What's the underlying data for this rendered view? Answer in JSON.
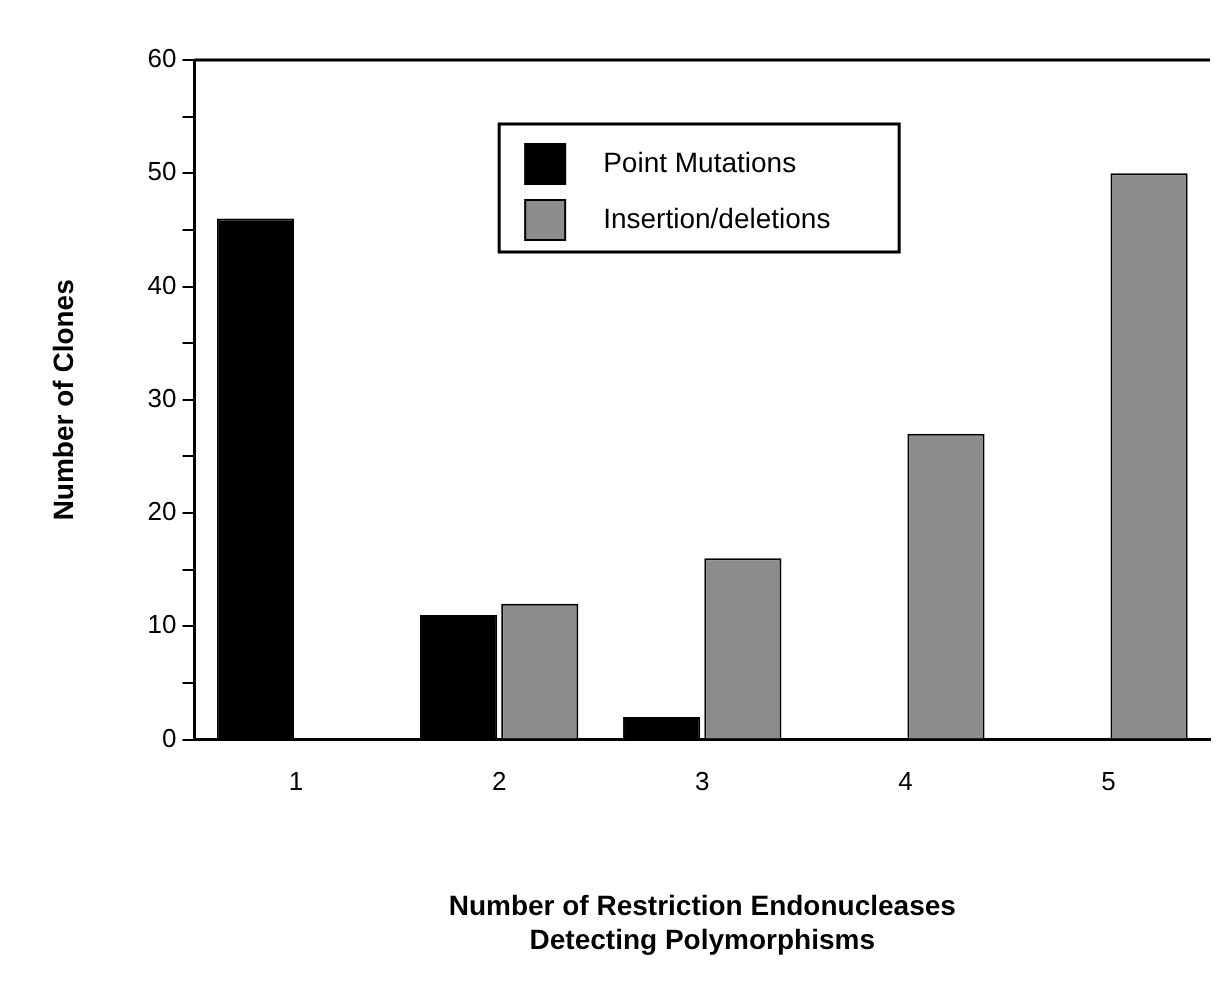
{
  "chart_data": {
    "type": "bar",
    "xlabel": "Number of Restriction Endonucleases\nDetecting Polymorphisms",
    "ylabel": "Number of Clones",
    "categories": [
      "1",
      "2",
      "3",
      "4",
      "5"
    ],
    "series": [
      {
        "name": "Point Mutations",
        "color": "#000000",
        "values": [
          46,
          11,
          2,
          0,
          0
        ]
      },
      {
        "name": "Insertion/deletions",
        "color": "#8c8c8c",
        "values": [
          0,
          12,
          16,
          27,
          50
        ]
      }
    ],
    "ylim": [
      0,
      60
    ],
    "yticks": [
      0,
      {
        "value": 5,
        "label": null
      },
      10,
      {
        "value": 15,
        "label": null
      },
      20,
      {
        "value": 25,
        "label": null
      },
      30,
      {
        "value": 35,
        "label": null
      },
      40,
      {
        "value": 45,
        "label": null
      },
      50,
      {
        "value": 55,
        "label": null
      },
      60
    ],
    "grid": false,
    "legend": "top right"
  }
}
